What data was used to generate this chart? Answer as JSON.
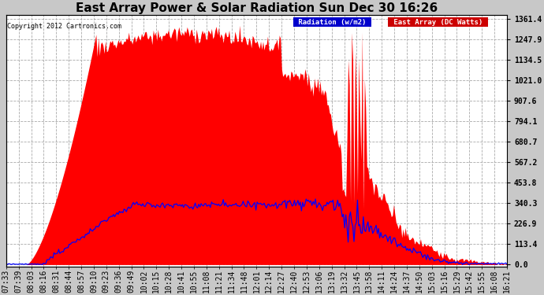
{
  "title": "East Array Power & Solar Radiation Sun Dec 30 16:26",
  "copyright": "Copyright 2012 Cartronics.com",
  "y_max": 1361.4,
  "y_min": 0.0,
  "y_ticks": [
    0.0,
    113.4,
    226.9,
    340.3,
    453.8,
    567.2,
    680.7,
    794.1,
    907.6,
    1021.0,
    1134.5,
    1247.9,
    1361.4
  ],
  "background_color": "#c8c8c8",
  "plot_bg_color": "#ffffff",
  "grid_color": "#aaaaaa",
  "fill_color": "#ff0000",
  "line_color": "#0000ff",
  "title_fontsize": 11,
  "tick_fontsize": 7,
  "x_labels": [
    "07:33",
    "07:39",
    "08:03",
    "08:16",
    "08:31",
    "08:44",
    "08:57",
    "09:10",
    "09:23",
    "09:36",
    "09:49",
    "10:02",
    "10:15",
    "10:28",
    "10:41",
    "10:55",
    "11:08",
    "11:21",
    "11:34",
    "11:48",
    "12:01",
    "12:14",
    "12:27",
    "12:40",
    "12:53",
    "13:06",
    "13:19",
    "13:32",
    "13:45",
    "13:58",
    "14:11",
    "14:24",
    "14:37",
    "14:50",
    "15:03",
    "15:16",
    "15:29",
    "15:42",
    "15:55",
    "16:08",
    "16:21"
  ]
}
